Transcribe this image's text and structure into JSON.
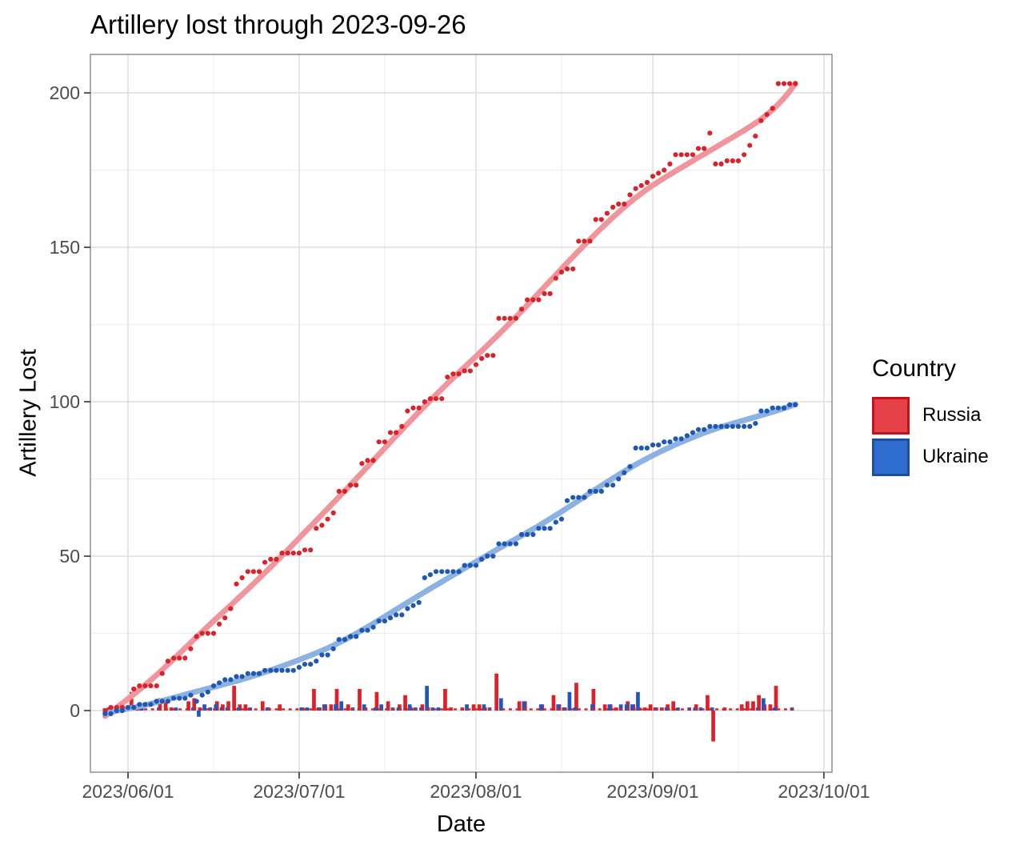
{
  "title": "Artillery lost through 2023-09-26",
  "axes": {
    "x_label": "Date",
    "y_label": "Artillery Lost",
    "x_tick_labels": [
      "2023/06/01",
      "2023/07/01",
      "2023/08/01",
      "2023/09/01",
      "2023/10/01"
    ],
    "y_tick_labels": [
      "0",
      "50",
      "100",
      "150",
      "200"
    ]
  },
  "legend": {
    "title": "Country",
    "items": [
      {
        "label": "Russia",
        "fill": "#e6404b",
        "border": "#c2121d"
      },
      {
        "label": "Ukraine",
        "fill": "#2f6dd0",
        "border": "#1d4fa0"
      }
    ]
  },
  "chart_data": {
    "type": "mixed-line-scatter-bar",
    "description": "Cumulative artillery losses as daily points with loess smooth lines; daily losses as dodged bars near zero; red dashed line along y=0.",
    "start_date": "2023-05-28",
    "end_date": "2023-09-26",
    "x_ticks": [
      {
        "label": "2023/06/01",
        "day": 4
      },
      {
        "label": "2023/07/01",
        "day": 34
      },
      {
        "label": "2023/08/01",
        "day": 65
      },
      {
        "label": "2023/09/01",
        "day": 96
      },
      {
        "label": "2023/10/01",
        "day": 126
      }
    ],
    "minor_x_days": [
      19,
      49,
      80,
      111
    ],
    "y_ticks": [
      0,
      50,
      100,
      150,
      200
    ],
    "minor_y_ticks": [
      25,
      75,
      125,
      175
    ],
    "ylim": [
      -20,
      212.5
    ],
    "xlim_days": [
      -2.6,
      127.4
    ],
    "grid": true,
    "legend_position": "right",
    "totals": {
      "Russia": 203,
      "Ukraine": 99
    },
    "annotations": {
      "dashed_baseline": {
        "series": "Russia",
        "y": 0.4,
        "style": "dashed"
      }
    },
    "series": [
      {
        "name": "Russia",
        "point_color": "#d8232b",
        "bar_color": "#dc2128",
        "smooth_color": "#f0959b",
        "dash_color": "#d8232b",
        "daily": [
          0,
          1,
          0,
          0,
          0,
          6,
          1,
          0,
          0,
          0,
          4,
          4,
          1,
          0,
          0,
          3,
          4,
          1,
          0,
          0,
          3,
          2,
          3,
          8,
          2,
          2,
          0,
          0,
          3,
          1,
          0,
          2,
          0,
          0,
          0,
          1,
          0,
          7,
          1,
          2,
          2,
          7,
          0,
          2,
          0,
          7,
          1,
          0,
          6,
          0,
          3,
          0,
          2,
          5,
          1,
          0,
          2,
          1,
          0,
          0,
          7,
          1,
          0,
          1,
          0,
          2,
          2,
          1,
          0,
          12,
          0,
          0,
          0,
          3,
          3,
          0,
          0,
          2,
          0,
          5,
          2,
          1,
          0,
          9,
          0,
          0,
          7,
          0,
          2,
          2,
          1,
          0,
          3,
          2,
          1,
          1,
          2,
          1,
          1,
          2,
          3,
          0,
          0,
          0,
          2,
          0,
          5,
          -10,
          0,
          1,
          0,
          0,
          2,
          3,
          3,
          5,
          2,
          2,
          8,
          0,
          0,
          0
        ]
      },
      {
        "name": "Ukraine",
        "point_color": "#1f58b4",
        "bar_color": "#2156bb",
        "smooth_color": "#8cb2e2",
        "daily": [
          -1,
          0,
          1,
          0,
          1,
          0,
          1,
          0,
          0,
          1,
          0,
          0,
          1,
          0,
          0,
          1,
          -2,
          2,
          1,
          2,
          1,
          1,
          0,
          1,
          0,
          1,
          0,
          0,
          1,
          0,
          0,
          0,
          0,
          0,
          1,
          1,
          0,
          1,
          2,
          0,
          2,
          3,
          0,
          1,
          0,
          2,
          0,
          1,
          2,
          0,
          1,
          1,
          0,
          2,
          1,
          1,
          8,
          1,
          1,
          0,
          0,
          0,
          0,
          2,
          0,
          0,
          2,
          1,
          0,
          4,
          0,
          0,
          0,
          3,
          0,
          0,
          2,
          0,
          0,
          2,
          1,
          6,
          1,
          0,
          0,
          2,
          0,
          0,
          2,
          0,
          2,
          2,
          2,
          6,
          0,
          0,
          1,
          0,
          1,
          0,
          1,
          0,
          1,
          1,
          1,
          0,
          1,
          0,
          0,
          0,
          0,
          0,
          0,
          0,
          1,
          4,
          0,
          1,
          0,
          0,
          1,
          0
        ]
      }
    ],
    "colors": {
      "panel_border": "#7e7e7e",
      "grid_major": "#dcdcdc",
      "grid_minor": "#ededed",
      "tick_mark": "#333333",
      "tick_text": "#4d4d4d"
    }
  }
}
